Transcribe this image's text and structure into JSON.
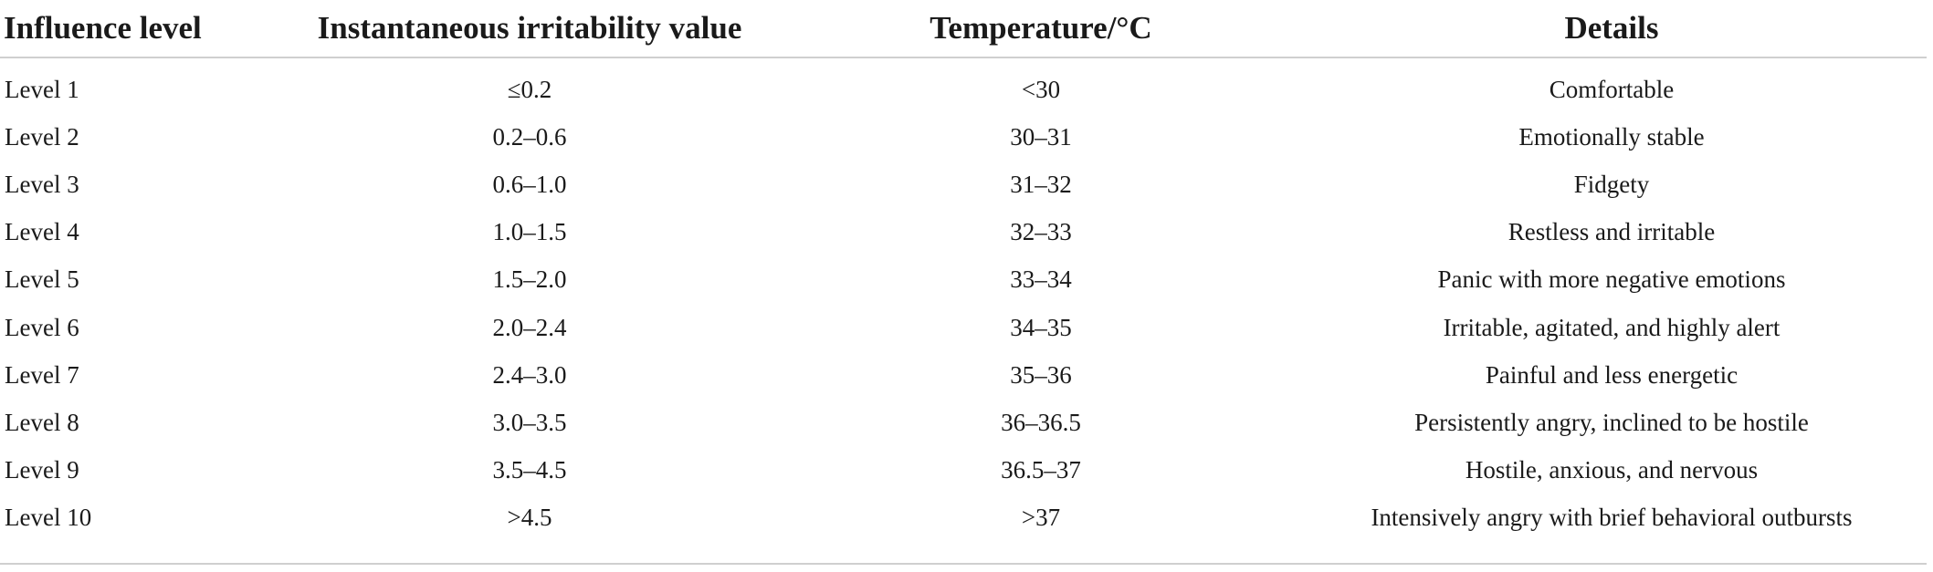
{
  "table": {
    "headers": [
      "Influence level",
      "Instantaneous irritability value",
      "Temperature/°C",
      "Details"
    ],
    "rows": [
      [
        "Level 1",
        "≤0.2",
        "<30",
        "Comfortable"
      ],
      [
        "Level 2",
        "0.2–0.6",
        "30–31",
        "Emotionally stable"
      ],
      [
        "Level 3",
        "0.6–1.0",
        "31–32",
        "Fidgety"
      ],
      [
        "Level 4",
        "1.0–1.5",
        "32–33",
        "Restless and irritable"
      ],
      [
        "Level 5",
        "1.5–2.0",
        "33–34",
        "Panic with more negative emotions"
      ],
      [
        "Level 6",
        "2.0–2.4",
        "34–35",
        "Irritable, agitated, and highly alert"
      ],
      [
        "Level 7",
        "2.4–3.0",
        "35–36",
        "Painful and less energetic"
      ],
      [
        "Level 8",
        "3.0–3.5",
        "36–36.5",
        "Persistently angry, inclined to be hostile"
      ],
      [
        "Level 9",
        "3.5–4.5",
        "36.5–37",
        "Hostile, anxious, and nervous"
      ],
      [
        "Level 10",
        ">4.5",
        ">37",
        "Intensively angry with brief behavioral outbursts"
      ]
    ]
  }
}
